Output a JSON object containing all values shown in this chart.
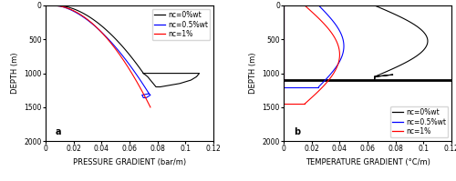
{
  "title_a": "a",
  "title_b": "b",
  "xlabel_a": "PRESSURE GRADIENT (bar/m)",
  "xlabel_b": "TEMPERATURE GRADIENT (°C/m)",
  "ylabel": "DEPTH (m)",
  "xlim": [
    0,
    0.12
  ],
  "ylim": [
    2000,
    0
  ],
  "xticks": [
    0,
    0.02,
    0.04,
    0.06,
    0.08,
    0.1,
    0.12
  ],
  "yticks": [
    0,
    500,
    1000,
    1500,
    2000
  ],
  "legend_labels": [
    "nc=0%wt",
    "nc=0.5%wt",
    "nc=1%"
  ],
  "colors": [
    "black",
    "blue",
    "red"
  ],
  "label_fontsize": 6,
  "tick_fontsize": 5.5,
  "legend_fontsize": 5.5
}
